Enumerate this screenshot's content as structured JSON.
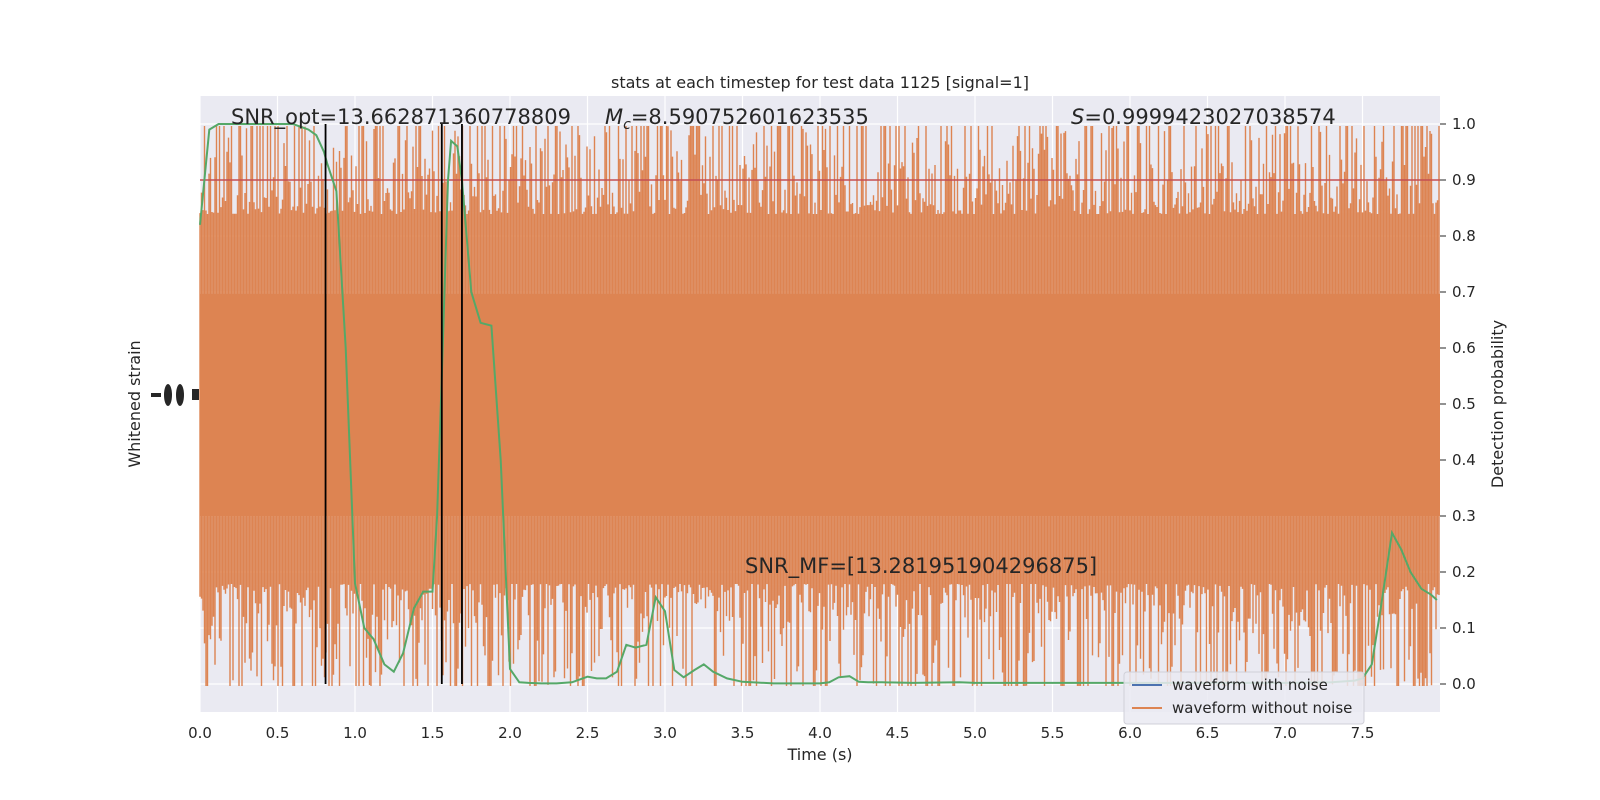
{
  "chart_data": {
    "type": "line",
    "title": "stats at each timestep for test data 1125 [signal=1]",
    "xlabel": "Time (s)",
    "ylabel_left": "Whitened strain",
    "ylabel_right": "Detection probability",
    "xlim": [
      0,
      8
    ],
    "ylim_right": [
      -0.05,
      1.05
    ],
    "grid": true,
    "legend_placement": "lower-right",
    "x_ticks": [
      "0.0",
      "0.5",
      "1.0",
      "1.5",
      "2.0",
      "2.5",
      "3.0",
      "3.5",
      "4.0",
      "4.5",
      "5.0",
      "5.5",
      "6.0",
      "6.5",
      "7.0",
      "7.5"
    ],
    "y_right_ticks": [
      "0.0",
      "0.1",
      "0.2",
      "0.3",
      "0.4",
      "0.5",
      "0.6",
      "0.7",
      "0.8",
      "0.9",
      "1.0"
    ],
    "annotations": {
      "snr_opt": "SNR_opt=13.662871360778809",
      "mc_symbol": "M",
      "mc_sub": "c",
      "mc_value": "=8.590752601623535",
      "s_symbol": "S",
      "s_value": "=0.9999423027038574",
      "snr_mf": "SNR_MF=[13.281951904296875]"
    },
    "threshold": 0.9,
    "vertical_lines": [
      0.81,
      1.56,
      1.69
    ],
    "series": [
      {
        "name": "waveform with noise",
        "color": "#4c72b0"
      },
      {
        "name": "waveform without noise",
        "color": "#dd8452"
      }
    ],
    "probability": {
      "color": "#55a868",
      "x": [
        0.0,
        0.06,
        0.12,
        0.2,
        0.3,
        0.4,
        0.5,
        0.6,
        0.7,
        0.75,
        0.8,
        0.82,
        0.88,
        0.94,
        1.0,
        1.06,
        1.12,
        1.19,
        1.25,
        1.31,
        1.38,
        1.44,
        1.5,
        1.53,
        1.56,
        1.6,
        1.62,
        1.66,
        1.69,
        1.75,
        1.81,
        1.88,
        1.94,
        2.0,
        2.06,
        2.12,
        2.2,
        2.3,
        2.4,
        2.5,
        2.56,
        2.62,
        2.69,
        2.75,
        2.81,
        2.88,
        2.94,
        3.0,
        3.06,
        3.12,
        3.19,
        3.25,
        3.31,
        3.4,
        3.5,
        3.7,
        3.9,
        4.0,
        4.06,
        4.12,
        4.19,
        4.25,
        4.31,
        4.4,
        4.6,
        4.9,
        5.0,
        5.2,
        5.5,
        6.0,
        6.5,
        7.0,
        7.3,
        7.45,
        7.5,
        7.56,
        7.62,
        7.69,
        7.75,
        7.81,
        7.88,
        7.94,
        7.98
      ],
      "y": [
        0.82,
        0.99,
        1.0,
        1.0,
        1.0,
        1.0,
        1.0,
        1.0,
        0.99,
        0.98,
        0.95,
        0.93,
        0.88,
        0.6,
        0.18,
        0.1,
        0.08,
        0.035,
        0.022,
        0.055,
        0.135,
        0.165,
        0.165,
        0.3,
        0.55,
        0.9,
        0.97,
        0.96,
        0.9,
        0.7,
        0.645,
        0.64,
        0.4,
        0.027,
        0.003,
        0.002,
        0.001,
        0.001,
        0.003,
        0.013,
        0.01,
        0.01,
        0.022,
        0.07,
        0.065,
        0.07,
        0.155,
        0.13,
        0.025,
        0.012,
        0.025,
        0.035,
        0.022,
        0.01,
        0.004,
        0.001,
        0.001,
        0.001,
        0.003,
        0.012,
        0.014,
        0.004,
        0.003,
        0.003,
        0.002,
        0.003,
        0.002,
        0.002,
        0.002,
        0.002,
        0.002,
        0.002,
        0.003,
        0.006,
        0.01,
        0.035,
        0.14,
        0.27,
        0.24,
        0.2,
        0.17,
        0.16,
        0.15
      ]
    }
  }
}
